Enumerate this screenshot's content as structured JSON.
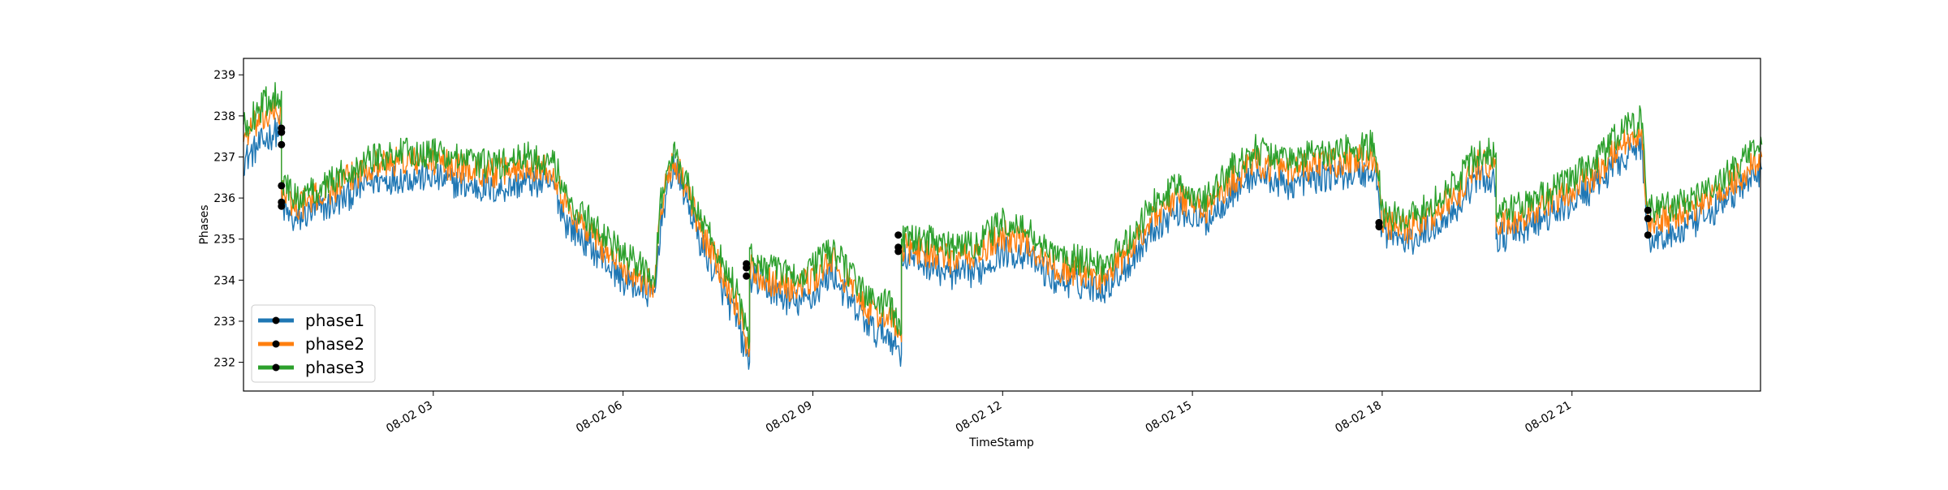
{
  "chart_data": {
    "type": "line",
    "title": "",
    "xlabel": "TimeStamp",
    "ylabel": "Phases",
    "xlim": [
      "08-02 00:00",
      "08-02 23:59"
    ],
    "ylim": [
      231.3,
      239.4
    ],
    "y_ticks": [
      232,
      233,
      234,
      235,
      236,
      237,
      238,
      239
    ],
    "x_ticks": [
      {
        "label": "08-02 03",
        "hour": 3
      },
      {
        "label": "08-02 06",
        "hour": 6
      },
      {
        "label": "08-02 09",
        "hour": 9
      },
      {
        "label": "08-02 12",
        "hour": 12
      },
      {
        "label": "08-02 15",
        "hour": 15
      },
      {
        "label": "08-02 18",
        "hour": 18
      },
      {
        "label": "08-02 21",
        "hour": 21
      }
    ],
    "grid": false,
    "legend_position": "lower-left",
    "series": [
      {
        "name": "phase1",
        "color": "#1f77b4",
        "points": [
          [
            0.0,
            236.9
          ],
          [
            0.2,
            237.2
          ],
          [
            0.4,
            237.5
          ],
          [
            0.6,
            237.7
          ],
          [
            0.6,
            235.8
          ],
          [
            0.8,
            235.4
          ],
          [
            1.0,
            235.6
          ],
          [
            1.5,
            235.9
          ],
          [
            2.0,
            236.4
          ],
          [
            2.5,
            236.5
          ],
          [
            3.0,
            236.5
          ],
          [
            3.5,
            236.3
          ],
          [
            4.0,
            236.2
          ],
          [
            4.5,
            236.4
          ],
          [
            4.9,
            236.3
          ],
          [
            5.1,
            235.4
          ],
          [
            5.5,
            234.8
          ],
          [
            6.0,
            234.0
          ],
          [
            6.5,
            233.6
          ],
          [
            6.6,
            235.5
          ],
          [
            6.8,
            236.8
          ],
          [
            7.0,
            236.0
          ],
          [
            7.2,
            235.0
          ],
          [
            7.5,
            234.0
          ],
          [
            7.8,
            233.0
          ],
          [
            7.9,
            232.4
          ],
          [
            8.0,
            232.0
          ],
          [
            8.0,
            234.1
          ],
          [
            8.3,
            233.8
          ],
          [
            8.7,
            233.4
          ],
          [
            9.0,
            233.6
          ],
          [
            9.3,
            234.2
          ],
          [
            9.6,
            233.4
          ],
          [
            10.0,
            232.7
          ],
          [
            10.2,
            232.7
          ],
          [
            10.4,
            232.2
          ],
          [
            10.4,
            234.6
          ],
          [
            10.8,
            234.4
          ],
          [
            11.2,
            234.1
          ],
          [
            11.6,
            234.2
          ],
          [
            12.0,
            234.7
          ],
          [
            12.4,
            234.6
          ],
          [
            12.8,
            234.0
          ],
          [
            13.2,
            233.9
          ],
          [
            13.6,
            233.8
          ],
          [
            14.0,
            234.4
          ],
          [
            14.4,
            235.3
          ],
          [
            14.8,
            235.7
          ],
          [
            15.2,
            235.4
          ],
          [
            15.6,
            236.1
          ],
          [
            16.0,
            236.6
          ],
          [
            16.5,
            236.3
          ],
          [
            17.0,
            236.5
          ],
          [
            17.5,
            236.6
          ],
          [
            17.9,
            236.6
          ],
          [
            18.0,
            235.2
          ],
          [
            18.4,
            234.9
          ],
          [
            18.8,
            235.3
          ],
          [
            19.2,
            235.8
          ],
          [
            19.5,
            236.5
          ],
          [
            19.8,
            236.4
          ],
          [
            19.8,
            235.0
          ],
          [
            20.2,
            235.2
          ],
          [
            20.6,
            235.5
          ],
          [
            21.0,
            235.9
          ],
          [
            21.4,
            236.3
          ],
          [
            21.8,
            237.0
          ],
          [
            22.1,
            237.3
          ],
          [
            22.2,
            235.0
          ],
          [
            22.6,
            235.1
          ],
          [
            23.0,
            235.4
          ],
          [
            23.4,
            235.9
          ],
          [
            23.8,
            236.4
          ],
          [
            24.0,
            236.7
          ]
        ]
      },
      {
        "name": "phase2",
        "color": "#ff7f0e",
        "points": [
          [
            0.0,
            237.5
          ],
          [
            0.2,
            237.8
          ],
          [
            0.4,
            238.0
          ],
          [
            0.6,
            238.1
          ],
          [
            0.6,
            236.2
          ],
          [
            0.8,
            235.8
          ],
          [
            1.0,
            235.9
          ],
          [
            1.5,
            236.3
          ],
          [
            2.0,
            236.8
          ],
          [
            2.5,
            236.9
          ],
          [
            3.0,
            236.9
          ],
          [
            3.5,
            236.7
          ],
          [
            4.0,
            236.6
          ],
          [
            4.5,
            236.8
          ],
          [
            4.9,
            236.7
          ],
          [
            5.1,
            235.8
          ],
          [
            5.5,
            235.1
          ],
          [
            6.0,
            234.3
          ],
          [
            6.5,
            233.9
          ],
          [
            6.6,
            235.8
          ],
          [
            6.8,
            237.0
          ],
          [
            7.0,
            236.2
          ],
          [
            7.2,
            235.3
          ],
          [
            7.5,
            234.4
          ],
          [
            7.8,
            233.4
          ],
          [
            7.9,
            232.8
          ],
          [
            8.0,
            232.3
          ],
          [
            8.0,
            234.3
          ],
          [
            8.3,
            234.0
          ],
          [
            8.7,
            233.8
          ],
          [
            9.0,
            234.0
          ],
          [
            9.3,
            234.5
          ],
          [
            9.6,
            233.8
          ],
          [
            10.0,
            233.1
          ],
          [
            10.2,
            233.2
          ],
          [
            10.4,
            232.5
          ],
          [
            10.4,
            234.8
          ],
          [
            10.8,
            234.7
          ],
          [
            11.2,
            234.5
          ],
          [
            11.6,
            234.6
          ],
          [
            12.0,
            235.1
          ],
          [
            12.4,
            234.9
          ],
          [
            12.8,
            234.3
          ],
          [
            13.2,
            234.2
          ],
          [
            13.6,
            234.0
          ],
          [
            14.0,
            234.7
          ],
          [
            14.4,
            235.6
          ],
          [
            14.8,
            236.0
          ],
          [
            15.2,
            235.7
          ],
          [
            15.6,
            236.4
          ],
          [
            16.0,
            236.9
          ],
          [
            16.5,
            236.6
          ],
          [
            17.0,
            236.8
          ],
          [
            17.5,
            236.9
          ],
          [
            17.9,
            237.0
          ],
          [
            18.0,
            235.4
          ],
          [
            18.4,
            235.2
          ],
          [
            18.8,
            235.6
          ],
          [
            19.2,
            236.1
          ],
          [
            19.5,
            236.8
          ],
          [
            19.8,
            236.8
          ],
          [
            19.8,
            235.3
          ],
          [
            20.2,
            235.5
          ],
          [
            20.6,
            235.8
          ],
          [
            21.0,
            236.2
          ],
          [
            21.4,
            236.6
          ],
          [
            21.8,
            237.4
          ],
          [
            22.1,
            237.6
          ],
          [
            22.2,
            235.4
          ],
          [
            22.6,
            235.5
          ],
          [
            23.0,
            235.8
          ],
          [
            23.4,
            236.2
          ],
          [
            23.8,
            236.7
          ],
          [
            24.0,
            237.0
          ]
        ]
      },
      {
        "name": "phase3",
        "color": "#2ca02c",
        "points": [
          [
            0.0,
            237.7
          ],
          [
            0.2,
            238.1
          ],
          [
            0.4,
            238.4
          ],
          [
            0.6,
            238.6
          ],
          [
            0.6,
            236.4
          ],
          [
            0.8,
            236.0
          ],
          [
            1.0,
            236.1
          ],
          [
            1.5,
            236.5
          ],
          [
            2.0,
            237.0
          ],
          [
            2.5,
            237.1
          ],
          [
            3.0,
            237.1
          ],
          [
            3.5,
            236.9
          ],
          [
            4.0,
            236.8
          ],
          [
            4.5,
            237.0
          ],
          [
            4.9,
            236.9
          ],
          [
            5.1,
            236.0
          ],
          [
            5.5,
            235.4
          ],
          [
            6.0,
            234.6
          ],
          [
            6.5,
            234.1
          ],
          [
            6.6,
            236.0
          ],
          [
            6.8,
            237.1
          ],
          [
            7.0,
            236.4
          ],
          [
            7.2,
            235.6
          ],
          [
            7.5,
            234.7
          ],
          [
            7.8,
            233.7
          ],
          [
            7.9,
            233.0
          ],
          [
            8.0,
            232.5
          ],
          [
            8.0,
            234.6
          ],
          [
            8.3,
            234.3
          ],
          [
            8.7,
            234.1
          ],
          [
            9.0,
            234.3
          ],
          [
            9.3,
            234.8
          ],
          [
            9.6,
            234.1
          ],
          [
            10.0,
            233.4
          ],
          [
            10.2,
            233.5
          ],
          [
            10.4,
            232.7
          ],
          [
            10.4,
            235.0
          ],
          [
            10.8,
            235.0
          ],
          [
            11.2,
            234.8
          ],
          [
            11.6,
            234.9
          ],
          [
            12.0,
            235.4
          ],
          [
            12.4,
            235.2
          ],
          [
            12.8,
            234.6
          ],
          [
            13.2,
            234.5
          ],
          [
            13.6,
            234.3
          ],
          [
            14.0,
            235.0
          ],
          [
            14.4,
            235.9
          ],
          [
            14.8,
            236.3
          ],
          [
            15.2,
            236.0
          ],
          [
            15.6,
            236.7
          ],
          [
            16.0,
            237.2
          ],
          [
            16.5,
            236.9
          ],
          [
            17.0,
            237.1
          ],
          [
            17.5,
            237.2
          ],
          [
            17.9,
            237.3
          ],
          [
            18.0,
            235.6
          ],
          [
            18.4,
            235.5
          ],
          [
            18.8,
            235.9
          ],
          [
            19.2,
            236.4
          ],
          [
            19.5,
            237.1
          ],
          [
            19.8,
            237.1
          ],
          [
            19.8,
            235.6
          ],
          [
            20.2,
            235.8
          ],
          [
            20.6,
            236.1
          ],
          [
            21.0,
            236.5
          ],
          [
            21.4,
            236.9
          ],
          [
            21.8,
            237.7
          ],
          [
            22.1,
            237.9
          ],
          [
            22.2,
            235.7
          ],
          [
            22.6,
            235.8
          ],
          [
            23.0,
            236.1
          ],
          [
            23.4,
            236.5
          ],
          [
            23.8,
            237.0
          ],
          [
            24.0,
            237.3
          ]
        ]
      }
    ],
    "markers": [
      [
        0.6,
        237.7
      ],
      [
        0.6,
        237.6
      ],
      [
        0.6,
        237.3
      ],
      [
        0.6,
        236.3
      ],
      [
        0.6,
        235.9
      ],
      [
        0.6,
        235.8
      ],
      [
        7.95,
        234.4
      ],
      [
        7.95,
        234.1
      ],
      [
        7.95,
        234.3
      ],
      [
        10.35,
        235.1
      ],
      [
        10.35,
        234.8
      ],
      [
        10.35,
        234.7
      ],
      [
        17.95,
        235.4
      ],
      [
        17.95,
        235.3
      ],
      [
        17.95,
        235.4
      ],
      [
        22.2,
        235.7
      ],
      [
        22.2,
        235.5
      ],
      [
        22.2,
        235.1
      ]
    ],
    "marker_color": "#000000"
  }
}
